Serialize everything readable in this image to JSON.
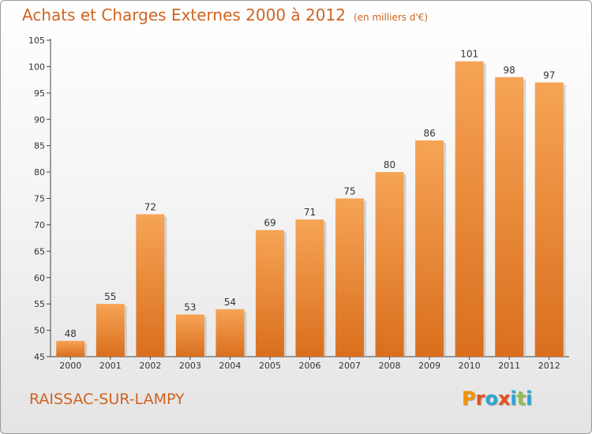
{
  "header": {
    "title": "Achats et Charges Externes 2000 à 2012",
    "subtitle": "(en milliers d'€)"
  },
  "footer": {
    "commune": "RAISSAC-SUR-LAMPY",
    "logo_letters": [
      "P",
      "r",
      "o",
      "x",
      "i",
      "t",
      "i"
    ]
  },
  "colors": {
    "accent": "#d0631f",
    "bar_top": "#f6a455",
    "bar_bottom": "#d96f1e",
    "logo": [
      "#f29400",
      "#e8501c",
      "#2aa5d6",
      "#e8501c",
      "#2aa5d6",
      "#8bc34a",
      "#2aa5d6"
    ]
  },
  "chart_data": {
    "type": "bar",
    "title": "Achats et Charges Externes 2000 à 2012",
    "subtitle": "(en milliers d'€)",
    "categories": [
      "2000",
      "2001",
      "2002",
      "2003",
      "2004",
      "2005",
      "2006",
      "2007",
      "2008",
      "2009",
      "2010",
      "2011",
      "2012"
    ],
    "values": [
      48,
      55,
      72,
      53,
      54,
      69,
      71,
      75,
      80,
      86,
      101,
      98,
      97
    ],
    "data_labels": [
      "48",
      "55",
      "72",
      "53",
      "54",
      "69",
      "71",
      "75",
      "80",
      "86",
      "101",
      "98",
      "97"
    ],
    "ylim": [
      45,
      105
    ],
    "yticks": [
      45,
      50,
      55,
      60,
      65,
      70,
      75,
      80,
      85,
      90,
      95,
      100,
      105
    ],
    "grid": false,
    "legend": "none"
  }
}
